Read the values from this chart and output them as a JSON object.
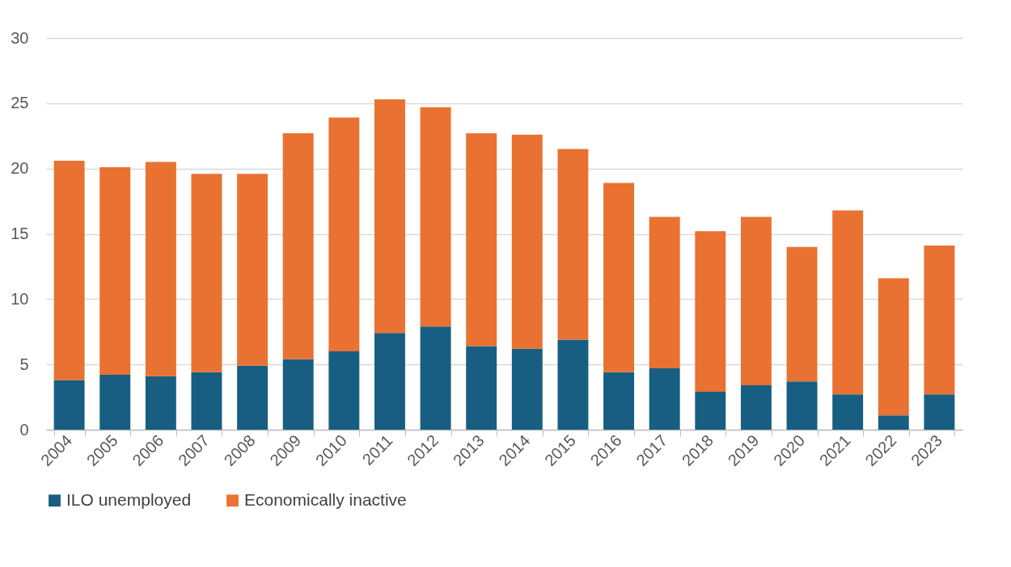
{
  "chart_data": {
    "type": "bar",
    "stacked": true,
    "categories": [
      "2004",
      "2005",
      "2006",
      "2007",
      "2008",
      "2009",
      "2010",
      "2011",
      "2012",
      "2013",
      "2014",
      "2015",
      "2016",
      "2017",
      "2018",
      "2019",
      "2020",
      "2021",
      "2022",
      "2023"
    ],
    "series": [
      {
        "name": "ILO unemployed",
        "color": "#175e82",
        "values": [
          3.8,
          4.2,
          4.1,
          4.4,
          4.9,
          5.4,
          6.0,
          7.4,
          7.9,
          6.4,
          6.2,
          6.9,
          4.4,
          4.7,
          2.9,
          3.4,
          3.7,
          2.7,
          1.1,
          2.7
        ]
      },
      {
        "name": "Economically inactive",
        "color": "#e97132",
        "values": [
          16.8,
          15.9,
          16.4,
          15.2,
          14.7,
          17.3,
          17.9,
          17.9,
          16.8,
          16.3,
          16.4,
          14.6,
          14.5,
          11.6,
          12.3,
          12.9,
          10.3,
          14.1,
          10.5,
          11.4
        ]
      }
    ],
    "ylim": [
      0,
      30
    ],
    "yticks": [
      0,
      5,
      10,
      15,
      20,
      25,
      30
    ],
    "grid": "y",
    "legend": "bottom"
  }
}
